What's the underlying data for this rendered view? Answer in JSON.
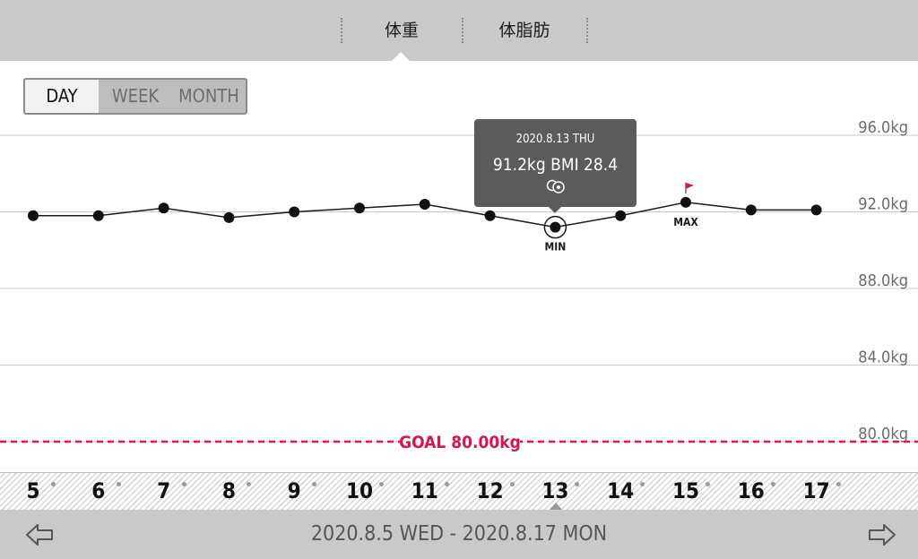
{
  "tabs": [
    {
      "label": "体重",
      "active": true
    },
    {
      "label": "体脂肪",
      "active": false
    }
  ],
  "view_modes": [
    {
      "label": "DAY",
      "active": true
    },
    {
      "label": "WEEK",
      "active": false
    },
    {
      "label": "MONTH",
      "active": false
    }
  ],
  "tooltip": {
    "date": "2020.8.13 THU",
    "value": "91.2kg  BMI 28.4",
    "icon": "target-icon"
  },
  "markers": {
    "min_label": "MIN",
    "max_label": "MAX"
  },
  "goal": {
    "label": "GOAL 80.00kg",
    "value": 80.0,
    "color": "#d6174a"
  },
  "range_label": "2020.8.5 WED - 2020.8.17 MON",
  "nav": {
    "prev_icon": "arrow-left-icon",
    "next_icon": "arrow-right-icon"
  },
  "chart_data": {
    "type": "line",
    "categories": [
      "5",
      "6",
      "7",
      "8",
      "9",
      "10",
      "11",
      "12",
      "13",
      "14",
      "15",
      "16",
      "17"
    ],
    "series": [
      {
        "values": [
          91.8,
          91.8,
          92.2,
          91.7,
          92.0,
          92.2,
          92.4,
          91.8,
          91.2,
          91.8,
          92.5,
          92.1,
          92.1
        ]
      }
    ],
    "ylim": [
      78,
      96
    ],
    "yticks": [
      80,
      84,
      88,
      92,
      96
    ],
    "ytick_labels": [
      "80.0kg",
      "84.0kg",
      "88.0kg",
      "92.0kg",
      "96.0kg"
    ],
    "selected_index": 8,
    "min_index": 8,
    "max_index": 10,
    "grid": true,
    "accent_color": "#d6174a"
  }
}
